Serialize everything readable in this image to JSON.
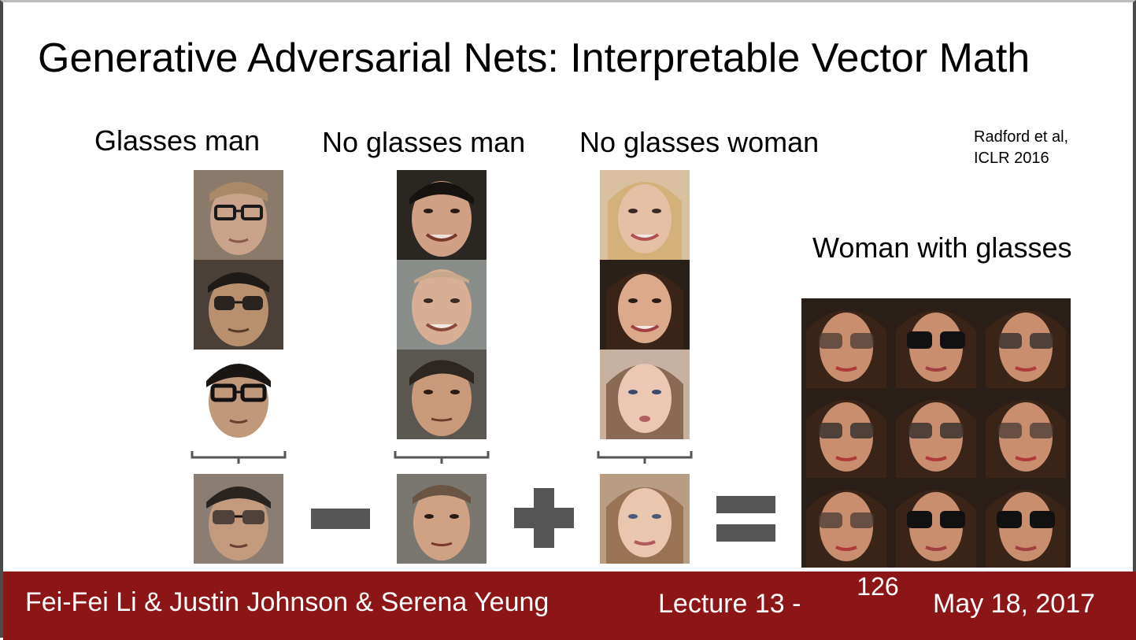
{
  "slide": {
    "title": "Generative Adversarial Nets: Interpretable Vector Math",
    "citation": {
      "line1": "Radford et al,",
      "line2": "ICLR 2016"
    },
    "labels": {
      "glasses_man": "Glasses man",
      "no_glasses_man": "No glasses man",
      "no_glasses_woman": "No glasses woman",
      "woman_with_glasses": "Woman with glasses"
    },
    "operators": [
      "minus-icon",
      "plus-icon",
      "equals-icon"
    ]
  },
  "footer": {
    "authors": "Fei-Fei Li & Justin Johnson & Serena Yeung",
    "lecture": "Lecture 13 -",
    "page": "126",
    "date": "May 18, 2017"
  },
  "colors": {
    "footer_bg": "#8c1515",
    "operator": "#555555"
  }
}
